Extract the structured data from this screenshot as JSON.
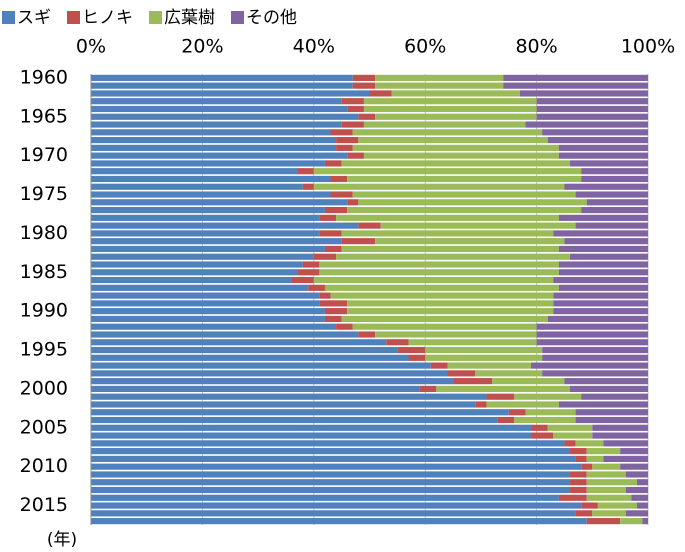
{
  "chart_data": {
    "type": "stacked_bar_horizontal",
    "y_axis_label": "(年)",
    "categories": [
      "1960",
      null,
      null,
      null,
      null,
      "1965",
      null,
      null,
      null,
      null,
      "1970",
      null,
      null,
      null,
      null,
      "1975",
      null,
      null,
      null,
      null,
      "1980",
      null,
      null,
      null,
      null,
      "1985",
      null,
      null,
      null,
      null,
      "1990",
      null,
      null,
      null,
      null,
      "1995",
      null,
      null,
      null,
      null,
      "2000",
      null,
      null,
      null,
      null,
      "2005",
      null,
      null,
      null,
      null,
      "2010",
      null,
      null,
      null,
      null,
      "2015",
      null,
      null
    ],
    "series": [
      {
        "name": "スギ",
        "color": "#4f81bd",
        "values": [
          47,
          47,
          50,
          45,
          46,
          48,
          45,
          43,
          44,
          44,
          46,
          42,
          37,
          43,
          38,
          43,
          46,
          42,
          41,
          48,
          41,
          45,
          42,
          40,
          38,
          37,
          36,
          39,
          41,
          41,
          42,
          42,
          44,
          48,
          53,
          55,
          57,
          61,
          64,
          65,
          59,
          71,
          69,
          75,
          73,
          79,
          79,
          85,
          86,
          87,
          88,
          86,
          86,
          86,
          84,
          88,
          87,
          89
        ]
      },
      {
        "name": "ヒノキ",
        "color": "#c0504d",
        "values": [
          4,
          4,
          4,
          4,
          3,
          3,
          4,
          4,
          4,
          3,
          3,
          3,
          3,
          3,
          2,
          4,
          2,
          4,
          3,
          4,
          4,
          6,
          3,
          4,
          3,
          4,
          4,
          3,
          2,
          5,
          4,
          3,
          3,
          3,
          4,
          5,
          3,
          3,
          5,
          7,
          3,
          5,
          2,
          3,
          3,
          3,
          4,
          2,
          3,
          2,
          2,
          3,
          3,
          3,
          5,
          3,
          3,
          6
        ]
      },
      {
        "name": "広葉樹",
        "color": "#9bbb59",
        "values": [
          23,
          23,
          23,
          31,
          31,
          29,
          29,
          34,
          34,
          37,
          35,
          41,
          48,
          42,
          45,
          40,
          41,
          42,
          40,
          35,
          38,
          34,
          39,
          42,
          43,
          43,
          43,
          42,
          40,
          37,
          37,
          37,
          33,
          29,
          23,
          21,
          21,
          15,
          12,
          13,
          24,
          12,
          13,
          9,
          11,
          8,
          7,
          5,
          6,
          3,
          5,
          7,
          9,
          7,
          8,
          7,
          6,
          4
        ]
      },
      {
        "name": "その他",
        "color": "#8064a2",
        "values": [
          26,
          26,
          23,
          20,
          20,
          20,
          22,
          19,
          18,
          16,
          16,
          14,
          12,
          12,
          15,
          13,
          11,
          12,
          16,
          13,
          17,
          15,
          16,
          14,
          16,
          16,
          17,
          16,
          17,
          17,
          17,
          18,
          20,
          20,
          20,
          19,
          19,
          21,
          19,
          15,
          14,
          12,
          16,
          13,
          13,
          10,
          10,
          8,
          5,
          8,
          5,
          4,
          2,
          4,
          3,
          2,
          4,
          1
        ]
      }
    ],
    "xlim": [
      0,
      100
    ],
    "xticks": [
      {
        "value": 0,
        "label": "0%"
      },
      {
        "value": 20,
        "label": "20%"
      },
      {
        "value": 40,
        "label": "40%"
      },
      {
        "value": 60,
        "label": "60%"
      },
      {
        "value": 80,
        "label": "80%"
      },
      {
        "value": 100,
        "label": "100%"
      }
    ],
    "grid": true
  }
}
